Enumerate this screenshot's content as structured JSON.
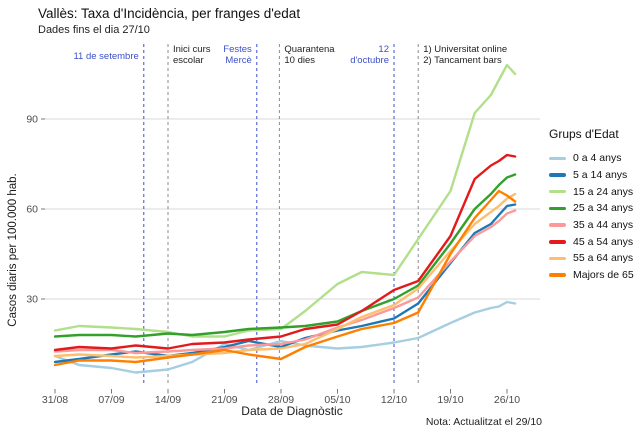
{
  "header": {
    "title": "Vallès: Taxa d'Incidència, per franges d'edat",
    "subtitle": "Dades fins el dia 27/10"
  },
  "note": "Nota: Actualitzat el  29/10",
  "legend": {
    "title": "Grups d'Edat"
  },
  "chart_data": {
    "type": "line",
    "title": "Vallès: Taxa d'Incidència, per franges d'edat",
    "subtitle": "Dades fins el dia 27/10",
    "xlabel": "Data de Diagnòstic",
    "ylabel": "Casos diaris per 100.000 hab.",
    "ylim": [
      0,
      113
    ],
    "yticks": [
      30,
      60,
      90
    ],
    "grid": "horizontal-only",
    "legend_position": "right",
    "legend_title": "Grups d'Edat",
    "grid_color": "#d8d8d8",
    "tick_text_color": "#4d4d4d",
    "annotation_blue": "#3c50c8",
    "annotation_dark": "#222222",
    "xticks": [
      {
        "label": "31/08",
        "day": 0
      },
      {
        "label": "07/09",
        "day": 7
      },
      {
        "label": "14/09",
        "day": 14
      },
      {
        "label": "21/09",
        "day": 21
      },
      {
        "label": "28/09",
        "day": 28
      },
      {
        "label": "05/10",
        "day": 35
      },
      {
        "label": "12/10",
        "day": 42
      },
      {
        "label": "19/10",
        "day": 49
      },
      {
        "label": "26/10",
        "day": 56
      }
    ],
    "x_dates": [
      "31/08",
      "03/09",
      "07/09",
      "10/09",
      "14/09",
      "17/09",
      "21/09",
      "24/09",
      "28/09",
      "01/10",
      "05/10",
      "08/10",
      "12/10",
      "15/10",
      "19/10",
      "22/10",
      "24/10",
      "25/10",
      "26/10",
      "27/10"
    ],
    "x_days": [
      0,
      3,
      7,
      10,
      14,
      17,
      21,
      24,
      28,
      31,
      35,
      38,
      42,
      45,
      49,
      52,
      54,
      55,
      56,
      57
    ],
    "series": [
      {
        "name": "0 a 4 anys",
        "color": "#a6cee3",
        "values": [
          11,
          8,
          7,
          5.5,
          6.5,
          9,
          15,
          13,
          16,
          14.5,
          13.5,
          14,
          15.5,
          17,
          22,
          25.5,
          27,
          27.5,
          29,
          28.5
        ]
      },
      {
        "name": "5 a 14 anys",
        "color": "#1f78b4",
        "values": [
          9,
          10,
          11.5,
          12.5,
          11,
          12,
          14,
          16,
          14,
          17,
          19.5,
          21,
          23.5,
          28.5,
          42,
          52,
          55,
          58,
          61,
          61.5
        ]
      },
      {
        "name": "15 a 24 anys",
        "color": "#b2df8a",
        "values": [
          19.5,
          21,
          20.5,
          20,
          19,
          17.5,
          17.5,
          19.5,
          20,
          26,
          35,
          39,
          38,
          50,
          66,
          92,
          98,
          103,
          108,
          105
        ]
      },
      {
        "name": "25 a 34 anys",
        "color": "#33a02c",
        "values": [
          17.5,
          18,
          18,
          17.5,
          18.5,
          18,
          19,
          20,
          20.5,
          21,
          22.5,
          26,
          30,
          34.5,
          48.5,
          60,
          65,
          68,
          70.5,
          71.5
        ]
      },
      {
        "name": "35 a 44 anys",
        "color": "#fb9a99",
        "values": [
          12.5,
          13,
          13,
          12,
          12.5,
          13,
          13.5,
          14.5,
          15,
          16.5,
          20.5,
          23,
          27,
          30.5,
          42.5,
          51,
          54,
          56,
          58.5,
          59.5
        ]
      },
      {
        "name": "45 a 54 anys",
        "color": "#e31a1c",
        "values": [
          13,
          14,
          13.5,
          14.5,
          13.5,
          15,
          15.5,
          16.5,
          17.5,
          20,
          21.5,
          26,
          33,
          36,
          51,
          70,
          74.5,
          76,
          78,
          77.5
        ]
      },
      {
        "name": "55 a 64 anys",
        "color": "#fdbf6f",
        "values": [
          11,
          11.5,
          11,
          10.5,
          11,
          11.5,
          12,
          13,
          13.5,
          15,
          20,
          24,
          28,
          33.5,
          46,
          55,
          59,
          61,
          63.5,
          65
        ]
      },
      {
        "name": "Majors de 65",
        "color": "#ff7f00",
        "values": [
          8,
          9.5,
          9.5,
          9,
          10.5,
          11.5,
          13,
          11.5,
          10,
          14,
          17.5,
          20,
          22,
          25.5,
          45,
          57,
          63,
          66,
          64.5,
          62.5
        ]
      }
    ],
    "annotations": [
      {
        "day": 11,
        "side": "left",
        "color": "blue",
        "lines": [
          "11 de setembre"
        ]
      },
      {
        "day": 14,
        "side": "right",
        "color": "dark",
        "lines": [
          "Inici curs",
          "escolar"
        ]
      },
      {
        "day": 25,
        "side": "left",
        "color": "blue",
        "lines": [
          "Festes",
          "Mercè"
        ]
      },
      {
        "day": 27.8,
        "side": "right",
        "color": "dark",
        "lines": [
          "Quarantena",
          "10 dies"
        ]
      },
      {
        "day": 42,
        "side": "left",
        "color": "blue",
        "lines": [
          "12",
          "d'octubre"
        ]
      },
      {
        "day": 45,
        "side": "right",
        "color": "dark",
        "lines": [
          "1) Universitat online",
          "2) Tancament bars"
        ]
      }
    ]
  }
}
